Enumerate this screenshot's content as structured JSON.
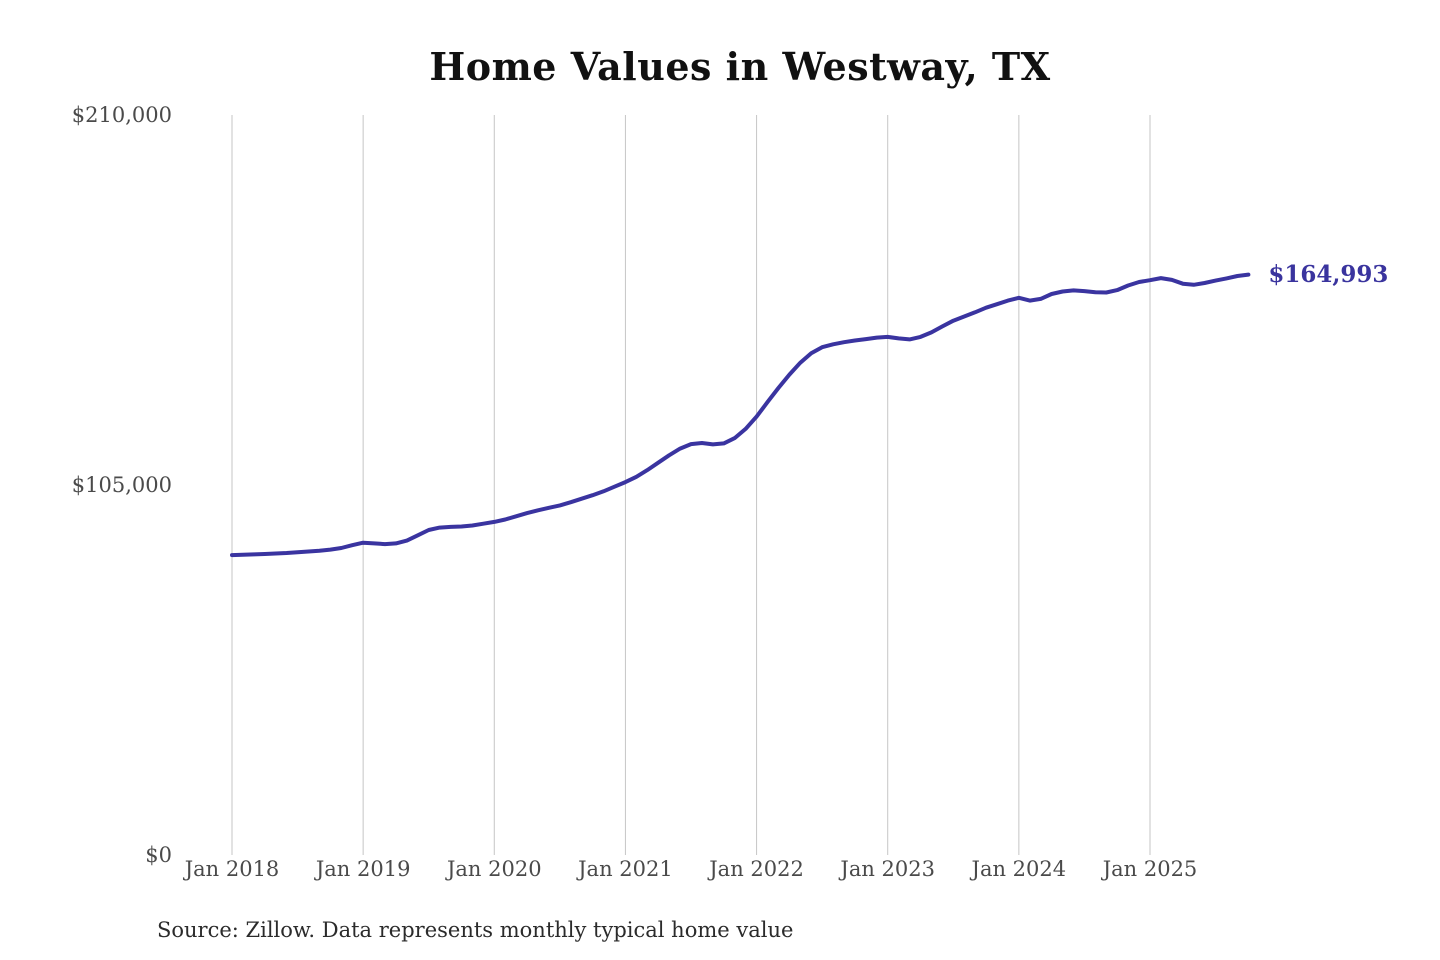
{
  "title": "Home Values in Westway, TX",
  "source_note": "Source: Zillow. Data represents monthly typical home value",
  "colors": {
    "line": "#3a34a0",
    "annotation_text": "#3a349e",
    "grid": "#c6c6c6",
    "axis_text": "#4a4a4a",
    "title_text": "#111111",
    "background": "#ffffff"
  },
  "chart_data": {
    "type": "line",
    "title": "Home Values in Westway, TX",
    "xlabel": "",
    "ylabel": "",
    "ylim": [
      0,
      210000
    ],
    "y_ticks": [
      0,
      105000,
      210000
    ],
    "y_tick_labels": [
      "$0",
      "$105,000",
      "$210,000"
    ],
    "x_tick_month_indices": [
      0,
      12,
      24,
      36,
      48,
      60,
      72,
      84
    ],
    "x_tick_labels": [
      "Jan 2018",
      "Jan 2019",
      "Jan 2020",
      "Jan 2021",
      "Jan 2022",
      "Jan 2023",
      "Jan 2024",
      "Jan 2025"
    ],
    "x_range": [
      "Jan 2018",
      "Oct 2025"
    ],
    "grid": "vertical-only",
    "legend": "none",
    "annotation": {
      "text": "$164,993",
      "value": 164993,
      "position": "line-end"
    },
    "series": [
      {
        "name": "Monthly typical home value (USD)",
        "values": [
          85400,
          85500,
          85600,
          85700,
          85850,
          86000,
          86200,
          86400,
          86650,
          86950,
          87400,
          88200,
          88900,
          88700,
          88500,
          88700,
          89500,
          91000,
          92500,
          93200,
          93400,
          93500,
          93800,
          94300,
          94800,
          95500,
          96400,
          97300,
          98100,
          98800,
          99500,
          100400,
          101400,
          102400,
          103500,
          104800,
          106100,
          107600,
          109500,
          111600,
          113700,
          115600,
          116900,
          117200,
          116800,
          117100,
          118600,
          121200,
          124700,
          128800,
          132800,
          136600,
          140000,
          142700,
          144400,
          145200,
          145800,
          146300,
          146700,
          147100,
          147300,
          146900,
          146600,
          147300,
          148600,
          150300,
          151900,
          153100,
          154300,
          155600,
          156600,
          157600,
          158400,
          157600,
          158100,
          159500,
          160200,
          160500,
          160300,
          160000,
          159900,
          160600,
          161900,
          162900,
          163400,
          164000,
          163500,
          162400,
          162100,
          162600,
          163300,
          163900,
          164600,
          164993
        ]
      }
    ]
  }
}
